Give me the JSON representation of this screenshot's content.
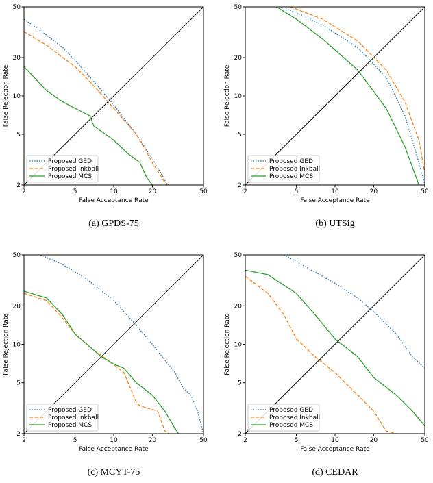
{
  "chart_data": [
    {
      "type": "line",
      "caption": "(a) GPDS-75",
      "xlabel": "False Acceptance Rate",
      "ylabel": "False Rejection Rate",
      "xscale": "log",
      "yscale": "log",
      "xlim": [
        2,
        50
      ],
      "ylim": [
        2,
        50
      ],
      "xticks": [
        2,
        5,
        10,
        20,
        50
      ],
      "yticks": [
        2,
        5,
        10,
        20,
        50
      ],
      "legend": "lower left",
      "series": [
        {
          "name": "Proposed GED",
          "color": "#1f77b4",
          "linestyle": "dotted",
          "x": [
            2,
            3,
            4,
            5,
            7,
            10,
            15,
            20,
            25,
            26
          ],
          "values": [
            40,
            30,
            24,
            19,
            13,
            8.5,
            5,
            3.2,
            2.2,
            2
          ]
        },
        {
          "name": "Proposed Inkball",
          "color": "#ff7f0e",
          "linestyle": "dashed",
          "x": [
            2,
            3,
            4,
            5,
            7,
            10,
            15,
            20,
            25,
            27
          ],
          "values": [
            32,
            25,
            20,
            17,
            12,
            8,
            5,
            3,
            2.1,
            2
          ]
        },
        {
          "name": "Proposed MCS",
          "color": "#2ca02c",
          "linestyle": "solid",
          "x": [
            2,
            3,
            4,
            5,
            6.5,
            7,
            10,
            13,
            16,
            18,
            20
          ],
          "values": [
            17,
            11,
            9,
            8,
            7,
            5.8,
            4.5,
            3.5,
            3,
            2.3,
            2
          ]
        }
      ]
    },
    {
      "type": "line",
      "caption": "(b) UTSig",
      "xlabel": "False Acceptance Rate",
      "ylabel": "False Rejection Rate",
      "xscale": "log",
      "yscale": "log",
      "xlim": [
        2,
        50
      ],
      "ylim": [
        2,
        50
      ],
      "xticks": [
        2,
        5,
        10,
        20,
        50
      ],
      "yticks": [
        2,
        5,
        10,
        20,
        50
      ],
      "legend": "lower left",
      "series": [
        {
          "name": "Proposed GED",
          "color": "#1f77b4",
          "linestyle": "dotted",
          "x": [
            3.8,
            5,
            8,
            15,
            25,
            35,
            45,
            50
          ],
          "values": [
            50,
            45,
            36,
            24,
            14,
            7,
            3,
            2
          ]
        },
        {
          "name": "Proposed Inkball",
          "color": "#ff7f0e",
          "linestyle": "dashed",
          "x": [
            4.5,
            8,
            15,
            25,
            35,
            45,
            50
          ],
          "values": [
            50,
            40,
            27,
            16,
            9,
            4.5,
            2.5
          ]
        },
        {
          "name": "Proposed MCS",
          "color": "#2ca02c",
          "linestyle": "solid",
          "x": [
            3.5,
            5,
            8,
            15,
            25,
            35,
            45
          ],
          "values": [
            50,
            40,
            28,
            16,
            8,
            4,
            2
          ]
        }
      ]
    },
    {
      "type": "line",
      "caption": "(c) MCYT-75",
      "xlabel": "False Acceptance Rate",
      "ylabel": "False Rejection Rate",
      "xscale": "log",
      "yscale": "log",
      "xlim": [
        2,
        50
      ],
      "ylim": [
        2,
        50
      ],
      "xticks": [
        2,
        5,
        10,
        20,
        50
      ],
      "yticks": [
        2,
        5,
        10,
        20,
        50
      ],
      "legend": "lower left",
      "series": [
        {
          "name": "Proposed GED",
          "color": "#1f77b4",
          "linestyle": "dotted",
          "x": [
            2.7,
            4,
            6,
            10,
            15,
            20,
            30,
            35,
            40,
            45,
            50
          ],
          "values": [
            50,
            42,
            33,
            22,
            14,
            10,
            6,
            4.5,
            4,
            3,
            2
          ]
        },
        {
          "name": "Proposed Inkball",
          "color": "#ff7f0e",
          "linestyle": "dashed",
          "x": [
            2,
            3,
            4,
            5,
            7,
            9,
            12,
            15,
            16,
            22,
            25,
            27
          ],
          "values": [
            25,
            22,
            16,
            12,
            9,
            7.5,
            6,
            3.5,
            3.3,
            3,
            2.1,
            2
          ]
        },
        {
          "name": "Proposed MCS",
          "color": "#2ca02c",
          "linestyle": "solid",
          "x": [
            2,
            3,
            4,
            5,
            8,
            10,
            12,
            15,
            20,
            25,
            30,
            32
          ],
          "values": [
            26,
            23,
            17,
            12,
            8,
            7,
            6.5,
            5,
            4,
            3,
            2.2,
            2
          ]
        }
      ]
    },
    {
      "type": "line",
      "caption": "(d) CEDAR",
      "xlabel": "False Acceptance Rate",
      "ylabel": "False Rejection Rate",
      "xscale": "log",
      "yscale": "log",
      "xlim": [
        2,
        50
      ],
      "ylim": [
        2,
        50
      ],
      "xticks": [
        2,
        5,
        10,
        20,
        50
      ],
      "yticks": [
        2,
        5,
        10,
        20,
        50
      ],
      "legend": "lower left",
      "series": [
        {
          "name": "Proposed GED",
          "color": "#1f77b4",
          "linestyle": "dotted",
          "x": [
            4,
            6,
            10,
            15,
            20,
            30,
            40,
            50
          ],
          "values": [
            50,
            40,
            30,
            23,
            18,
            12,
            8,
            6.5
          ]
        },
        {
          "name": "Proposed Inkball",
          "color": "#ff7f0e",
          "linestyle": "dashed",
          "x": [
            2,
            3,
            4,
            5,
            7,
            10,
            15,
            20,
            25,
            30
          ],
          "values": [
            34,
            25,
            17,
            11,
            8,
            6,
            4,
            3,
            2.1,
            2
          ]
        },
        {
          "name": "Proposed MCS",
          "color": "#2ca02c",
          "linestyle": "solid",
          "x": [
            2,
            3,
            5,
            7,
            10,
            15,
            20,
            30,
            40,
            50
          ],
          "values": [
            38,
            35,
            25,
            17,
            11,
            8,
            5.5,
            4,
            3,
            2.3
          ]
        }
      ]
    }
  ]
}
